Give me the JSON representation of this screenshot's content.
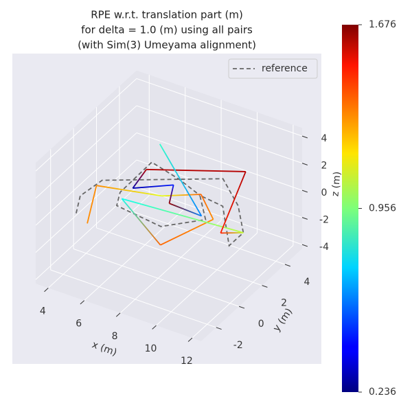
{
  "chart_data": {
    "type": "line3d",
    "title": [
      "RPE w.r.t. translation part (m)",
      "for delta = 1.0 (m) using all pairs",
      "(with Sim(3) Umeyama alignment)"
    ],
    "xlabel": "x (m)",
    "ylabel": "y (m)",
    "zlabel": "z (m)",
    "xlim": [
      3.3,
      12.5
    ],
    "ylim": [
      -3.3,
      5.5
    ],
    "zlim": [
      -4.3,
      4.6
    ],
    "xticks": [
      4,
      6,
      8,
      10,
      12
    ],
    "yticks": [
      -2,
      0,
      2,
      4
    ],
    "zticks": [
      -4,
      -2,
      0,
      2,
      4
    ],
    "grid": true,
    "legend": "upper right",
    "colormap": "jet",
    "clim": [
      0.236,
      1.676
    ],
    "cticks": [
      {
        "value": 0.236,
        "label": "0.236"
      },
      {
        "value": 0.956,
        "label": "0.956"
      },
      {
        "value": 1.676,
        "label": "1.676"
      }
    ],
    "series": [
      {
        "name": "reference",
        "color": "#666666",
        "style": "dashed",
        "x": [
          4.4,
          3.8,
          4.0,
          8.8,
          10.6,
          11.4,
          10.8,
          10.0,
          8.6,
          9.3,
          7.8,
          5.7,
          5.25,
          5.8,
          7.1,
          8.6
        ],
        "y": [
          -1.5,
          -0.2,
          1.4,
          4.4,
          2.9,
          2.1,
          1.8,
          2.5,
          2.7,
          2.1,
          0.55,
          0,
          1.0,
          2.9,
          3.3,
          2.7
        ],
        "z": [
          0,
          0,
          0,
          0,
          0,
          -1,
          -2,
          0,
          0,
          -1,
          -1,
          0,
          0,
          1,
          0,
          0
        ]
      },
      {
        "style": "colormap",
        "x": [
          4.7,
          4.0,
          7.1,
          8.6,
          9.6,
          8.0,
          5.6,
          11.4,
          10.2,
          10.0,
          6.2,
          5.7,
          7.2,
          7.6,
          8.5,
          5.8
        ],
        "y": [
          -1.0,
          0.9,
          1.75,
          2.8,
          2.3,
          0.2,
          0.6,
          2.1,
          2.0,
          4.5,
          1.8,
          1.4,
          2.6,
          1.6,
          3.0,
          3.6
        ],
        "z": [
          -1,
          0,
          0,
          0,
          -1,
          -2,
          0,
          -1,
          -1.5,
          1.0,
          1.5,
          0.2,
          0.2,
          -0.2,
          -1.8,
          1.8
        ],
        "values": [
          1.3,
          1.3,
          1.1,
          1.35,
          1.3,
          1.35,
          0.8,
          1.05,
          1.45,
          1.6,
          1.6,
          0.3,
          0.45,
          1.65,
          0.6,
          0.85
        ]
      }
    ]
  }
}
